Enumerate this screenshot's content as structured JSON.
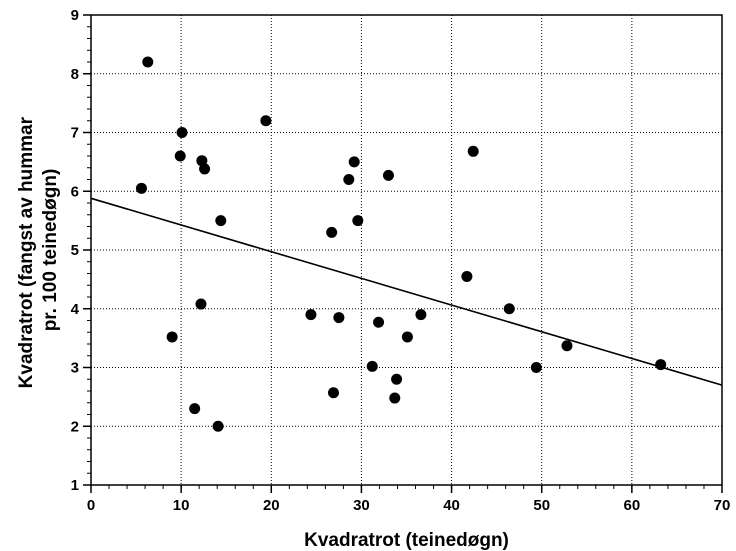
{
  "chart_data": {
    "type": "scatter",
    "title": "",
    "xlabel": "Kvadratrot (teinedøgn)",
    "ylabel_lines": [
      "Kvadratrot (fangst av hummar",
      "pr. 100 teinedøgn)"
    ],
    "xlim": [
      0,
      70
    ],
    "ylim": [
      1,
      9
    ],
    "x_ticks": [
      0,
      10,
      20,
      30,
      40,
      50,
      60,
      70
    ],
    "y_ticks": [
      1,
      2,
      3,
      4,
      5,
      6,
      7,
      8,
      9
    ],
    "x_minor_step": 2,
    "y_minor_step": 0.2,
    "grid": "dotted major gridlines",
    "legend": "none",
    "point_color": "#000000",
    "points": [
      {
        "x": 5.6,
        "y": 6.05
      },
      {
        "x": 6.3,
        "y": 8.2
      },
      {
        "x": 9.0,
        "y": 3.52
      },
      {
        "x": 9.9,
        "y": 6.6
      },
      {
        "x": 10.1,
        "y": 7.0
      },
      {
        "x": 11.5,
        "y": 2.3
      },
      {
        "x": 12.2,
        "y": 4.08
      },
      {
        "x": 12.3,
        "y": 6.52
      },
      {
        "x": 12.6,
        "y": 6.38
      },
      {
        "x": 14.1,
        "y": 2.0
      },
      {
        "x": 14.4,
        "y": 5.5
      },
      {
        "x": 19.4,
        "y": 7.2
      },
      {
        "x": 24.4,
        "y": 3.9
      },
      {
        "x": 26.7,
        "y": 5.3
      },
      {
        "x": 26.9,
        "y": 2.57
      },
      {
        "x": 27.5,
        "y": 3.85
      },
      {
        "x": 28.6,
        "y": 6.2
      },
      {
        "x": 29.2,
        "y": 6.5
      },
      {
        "x": 29.6,
        "y": 5.5
      },
      {
        "x": 31.2,
        "y": 3.02
      },
      {
        "x": 31.9,
        "y": 3.77
      },
      {
        "x": 33.0,
        "y": 6.27
      },
      {
        "x": 33.7,
        "y": 2.48
      },
      {
        "x": 33.9,
        "y": 2.8
      },
      {
        "x": 35.1,
        "y": 3.52
      },
      {
        "x": 36.6,
        "y": 3.9
      },
      {
        "x": 41.7,
        "y": 4.55
      },
      {
        "x": 42.4,
        "y": 6.68
      },
      {
        "x": 46.4,
        "y": 4.0
      },
      {
        "x": 49.4,
        "y": 3.0
      },
      {
        "x": 52.8,
        "y": 3.37
      },
      {
        "x": 63.2,
        "y": 3.05
      }
    ],
    "trendline": {
      "x": [
        0,
        70
      ],
      "y": [
        5.88,
        2.7
      ]
    }
  }
}
